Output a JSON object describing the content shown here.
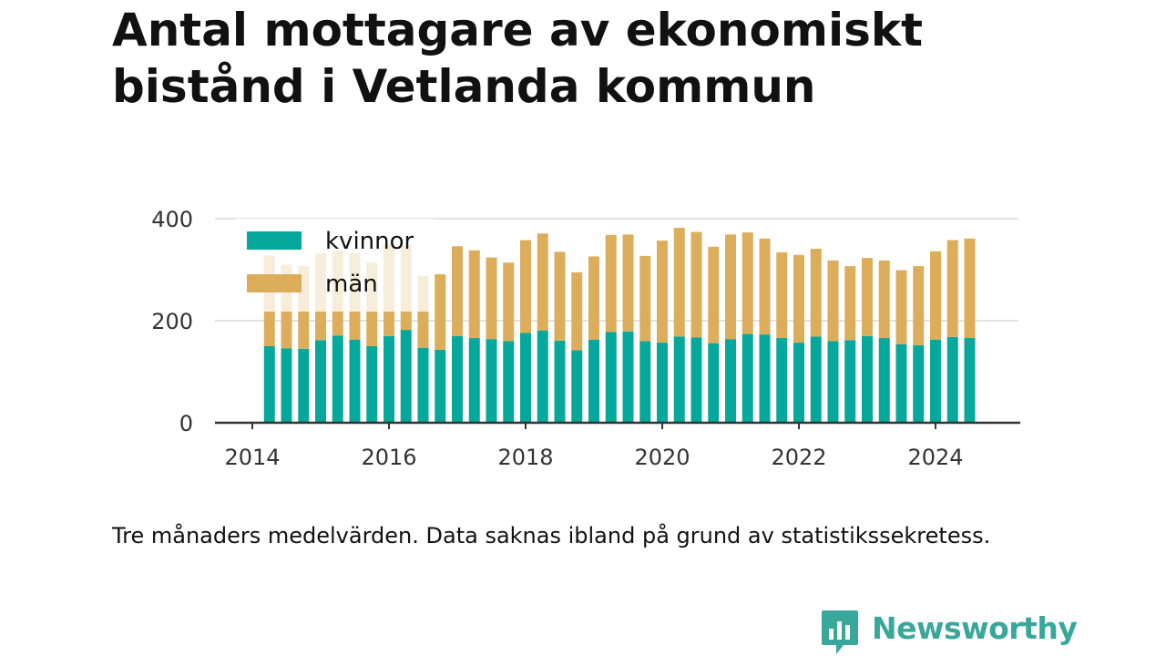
{
  "chart_data": {
    "type": "bar",
    "stacked": true,
    "title": "Antal mottagare av ekonomiskt bistånd i Vetlanda kommun",
    "note": "Tre månaders medelvärden. Data saknas ibland på grund av statistikssekretess.",
    "x_start": 2014.25,
    "x_step": 0.25,
    "xlim": [
      2014,
      2025.2
    ],
    "ylim": [
      0,
      400
    ],
    "y_ticks": [
      0,
      200,
      400
    ],
    "x_ticks": [
      2014,
      2016,
      2018,
      2020,
      2022,
      2024
    ],
    "grid": true,
    "legend_position": "top-left",
    "series": [
      {
        "name": "kvinnor",
        "color": "#05a89a",
        "values": [
          150,
          146,
          145,
          162,
          171,
          163,
          150,
          170,
          182,
          147,
          143,
          170,
          166,
          164,
          160,
          176,
          181,
          161,
          142,
          163,
          178,
          179,
          160,
          157,
          169,
          167,
          156,
          164,
          174,
          173,
          166,
          157,
          169,
          160,
          162,
          170,
          166,
          154,
          152,
          163,
          168,
          166
        ]
      },
      {
        "name": "män",
        "color": "#dcae5c",
        "values": [
          178,
          164,
          162,
          170,
          166,
          170,
          164,
          180,
          166,
          141,
          148,
          176,
          172,
          160,
          154,
          182,
          190,
          174,
          153,
          163,
          190,
          190,
          167,
          200,
          213,
          207,
          189,
          205,
          199,
          188,
          168,
          172,
          172,
          158,
          145,
          153,
          152,
          145,
          155,
          173,
          190,
          195
        ]
      }
    ]
  },
  "branding": {
    "logo_text": "Newsworthy",
    "logo_color": "#3aa79b",
    "logo_icon": "bar-chart-speech-bubble-icon"
  }
}
